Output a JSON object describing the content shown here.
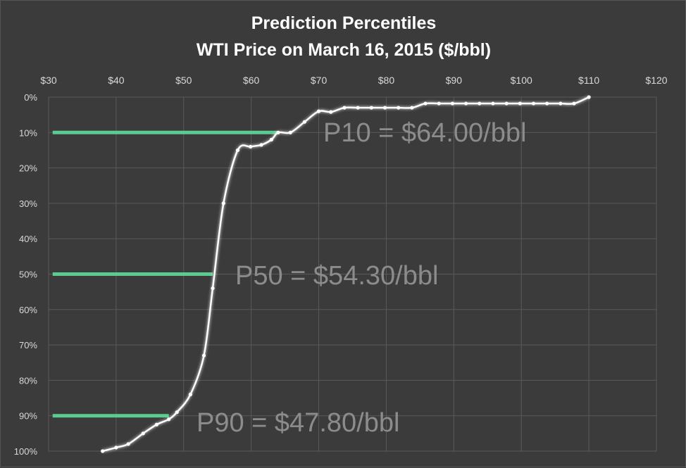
{
  "chart_data": {
    "type": "line",
    "title": "Prediction Percentiles",
    "subtitle": "WTI Price on March 16, 2015 ($/bbl)",
    "xlabel": "",
    "ylabel": "",
    "x_axis_position": "top",
    "y_axis_reversed": true,
    "xlim": [
      30,
      120
    ],
    "ylim": [
      0,
      100
    ],
    "x_ticks": [
      "$30",
      "$40",
      "$50",
      "$60",
      "$70",
      "$80",
      "$90",
      "$100",
      "$110",
      "$120"
    ],
    "y_ticks": [
      "0%",
      "10%",
      "20%",
      "30%",
      "40%",
      "50%",
      "60%",
      "70%",
      "80%",
      "90%",
      "100%"
    ],
    "grid": true,
    "colors": {
      "line": "#ffffff",
      "marker": "#ffffff",
      "percentile_lines": "#5ccb8f",
      "grid": "#5a5a5a"
    },
    "series": [
      {
        "points": [
          [
            38,
            100
          ],
          [
            40,
            99
          ],
          [
            41.8,
            98
          ],
          [
            44,
            95
          ],
          [
            46,
            92.5
          ],
          [
            47.8,
            91
          ],
          [
            49,
            89
          ],
          [
            51,
            84
          ],
          [
            53,
            73
          ],
          [
            54.3,
            54
          ],
          [
            55.9,
            30
          ],
          [
            58,
            15
          ],
          [
            59.9,
            14
          ],
          [
            61.5,
            13.5
          ],
          [
            63,
            12
          ],
          [
            64,
            10
          ],
          [
            65.8,
            10
          ],
          [
            67.9,
            7
          ],
          [
            70,
            4
          ],
          [
            71.8,
            4.2
          ],
          [
            73.8,
            3
          ],
          [
            75.8,
            3
          ],
          [
            77.8,
            3
          ],
          [
            79.8,
            3
          ],
          [
            81.8,
            3
          ],
          [
            83.8,
            3
          ],
          [
            85.8,
            1.8
          ],
          [
            87.8,
            1.8
          ],
          [
            89.8,
            1.8
          ],
          [
            91.8,
            1.8
          ],
          [
            93.8,
            1.8
          ],
          [
            95.8,
            1.8
          ],
          [
            97.8,
            1.8
          ],
          [
            99.8,
            1.8
          ],
          [
            101.8,
            1.8
          ],
          [
            103.8,
            1.8
          ],
          [
            105.8,
            1.8
          ],
          [
            107.8,
            1.8
          ],
          [
            110,
            0
          ]
        ]
      }
    ],
    "percentiles": [
      {
        "label": "P10 = $64.00/bbl",
        "price": 64.0,
        "percentile": 10
      },
      {
        "label": "P50 = $54.30/bbl",
        "price": 54.3,
        "percentile": 50
      },
      {
        "label": "P90 = $47.80/bbl",
        "price": 47.8,
        "percentile": 90
      }
    ]
  }
}
